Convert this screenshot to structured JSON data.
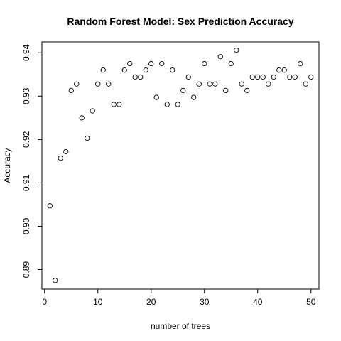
{
  "chart_data": {
    "type": "scatter",
    "title": "Random Forest Model: Sex Prediction Accuracy",
    "xlabel": "number of trees",
    "ylabel": "Accuracy",
    "xlim": [
      -0.5,
      51.5
    ],
    "ylim": [
      0.8855,
      0.9425
    ],
    "x_ticks": [
      0,
      10,
      20,
      30,
      40,
      50
    ],
    "x_tick_labels": [
      "0",
      "10",
      "20",
      "30",
      "40",
      "50"
    ],
    "y_ticks": [
      0.89,
      0.9,
      0.91,
      0.92,
      0.93,
      0.94
    ],
    "y_tick_labels": [
      "0.89",
      "0.90",
      "0.91",
      "0.92",
      "0.93",
      "0.94"
    ],
    "grid": false,
    "marker": "open-circle",
    "x": [
      1,
      2,
      3,
      4,
      5,
      6,
      7,
      8,
      9,
      10,
      11,
      12,
      13,
      14,
      15,
      16,
      17,
      18,
      19,
      20,
      21,
      22,
      23,
      24,
      25,
      26,
      27,
      28,
      29,
      30,
      31,
      32,
      33,
      34,
      35,
      36,
      37,
      38,
      39,
      40,
      41,
      42,
      43,
      44,
      45,
      46,
      47,
      48,
      49,
      50
    ],
    "y": [
      0.9047,
      0.8875,
      0.9157,
      0.9172,
      0.9313,
      0.9328,
      0.925,
      0.9203,
      0.9266,
      0.9328,
      0.936,
      0.9328,
      0.9281,
      0.9281,
      0.936,
      0.9375,
      0.9344,
      0.9344,
      0.936,
      0.9375,
      0.9297,
      0.9375,
      0.9281,
      0.936,
      0.9281,
      0.9313,
      0.9344,
      0.9297,
      0.9328,
      0.9375,
      0.9328,
      0.9328,
      0.9391,
      0.9313,
      0.9375,
      0.9406,
      0.9328,
      0.9313,
      0.9344,
      0.9344,
      0.9344,
      0.9328,
      0.9344,
      0.936,
      0.936,
      0.9344,
      0.9344,
      0.9375,
      0.9328,
      0.9344
    ]
  }
}
